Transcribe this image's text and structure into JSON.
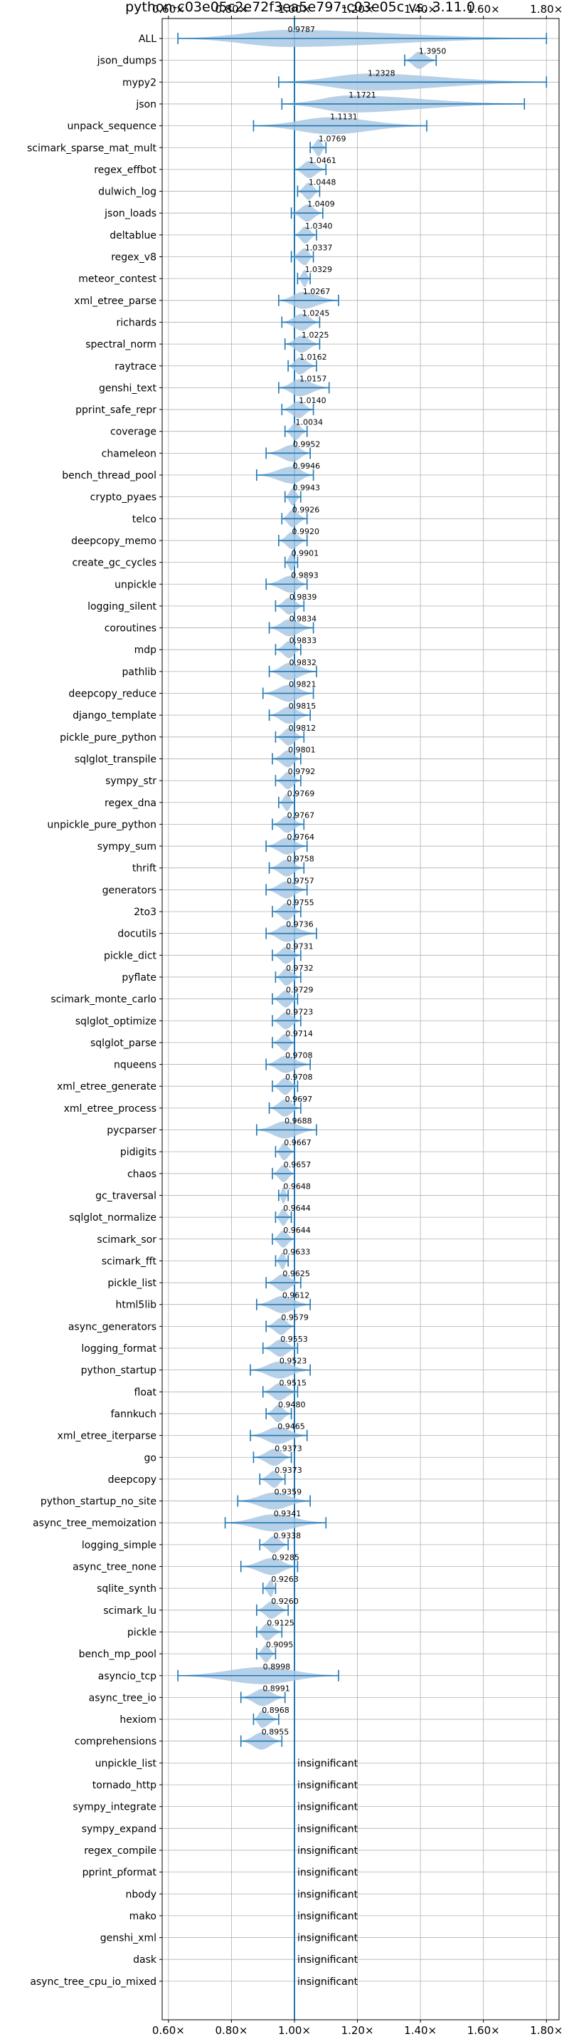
{
  "chart_data": {
    "type": "violin",
    "title": "python-c03e05c2e72f3ea5e797-c03e05c vs. 3.11.0",
    "xlabel": "",
    "ylabel": "",
    "xlim": [
      0.58,
      1.84
    ],
    "x_ticks": [
      0.6,
      0.8,
      1.0,
      1.2,
      1.4,
      1.6,
      1.8
    ],
    "x_tick_format": "{v}×",
    "grid": true,
    "reference_line": 1.0,
    "colors": {
      "body": "#a9c8e4",
      "line": "#1f77b4",
      "grid": "#b0b0b0"
    },
    "insignificant_label": "insignificant",
    "benchmarks": [
      {
        "name": "ALL",
        "median": 0.9787,
        "min": 0.63,
        "max": 1.8,
        "label": "0.9787"
      },
      {
        "name": "json_dumps",
        "median": 1.395,
        "min": 1.35,
        "max": 1.45,
        "label": "1.3950"
      },
      {
        "name": "mypy2",
        "median": 1.2328,
        "min": 0.95,
        "max": 1.8,
        "label": "1.2328"
      },
      {
        "name": "json",
        "median": 1.1721,
        "min": 0.96,
        "max": 1.73,
        "label": "1.1721"
      },
      {
        "name": "unpack_sequence",
        "median": 1.1131,
        "min": 0.87,
        "max": 1.42,
        "label": "1.1131"
      },
      {
        "name": "scimark_sparse_mat_mult",
        "median": 1.0769,
        "min": 1.05,
        "max": 1.1,
        "label": "1.0769"
      },
      {
        "name": "regex_effbot",
        "median": 1.0461,
        "min": 1.0,
        "max": 1.1,
        "label": "1.0461"
      },
      {
        "name": "dulwich_log",
        "median": 1.0448,
        "min": 1.01,
        "max": 1.08,
        "label": "1.0448"
      },
      {
        "name": "json_loads",
        "median": 1.0409,
        "min": 0.99,
        "max": 1.09,
        "label": "1.0409"
      },
      {
        "name": "deltablue",
        "median": 1.034,
        "min": 1.0,
        "max": 1.07,
        "label": "1.0340"
      },
      {
        "name": "regex_v8",
        "median": 1.0337,
        "min": 0.99,
        "max": 1.06,
        "label": "1.0337"
      },
      {
        "name": "meteor_contest",
        "median": 1.0329,
        "min": 1.01,
        "max": 1.05,
        "label": "1.0329"
      },
      {
        "name": "xml_etree_parse",
        "median": 1.0267,
        "min": 0.95,
        "max": 1.14,
        "label": "1.0267"
      },
      {
        "name": "richards",
        "median": 1.0245,
        "min": 0.96,
        "max": 1.08,
        "label": "1.0245"
      },
      {
        "name": "spectral_norm",
        "median": 1.0225,
        "min": 0.97,
        "max": 1.08,
        "label": "1.0225"
      },
      {
        "name": "raytrace",
        "median": 1.0162,
        "min": 0.98,
        "max": 1.07,
        "label": "1.0162"
      },
      {
        "name": "genshi_text",
        "median": 1.0157,
        "min": 0.95,
        "max": 1.11,
        "label": "1.0157"
      },
      {
        "name": "pprint_safe_repr",
        "median": 1.014,
        "min": 0.96,
        "max": 1.06,
        "label": "1.0140"
      },
      {
        "name": "coverage",
        "median": 1.0034,
        "min": 0.97,
        "max": 1.04,
        "label": "1.0034"
      },
      {
        "name": "chameleon",
        "median": 0.9952,
        "min": 0.91,
        "max": 1.05,
        "label": "0.9952"
      },
      {
        "name": "bench_thread_pool",
        "median": 0.9946,
        "min": 0.88,
        "max": 1.06,
        "label": "0.9946"
      },
      {
        "name": "crypto_pyaes",
        "median": 0.9943,
        "min": 0.97,
        "max": 1.02,
        "label": "0.9943"
      },
      {
        "name": "telco",
        "median": 0.9926,
        "min": 0.96,
        "max": 1.04,
        "label": "0.9926"
      },
      {
        "name": "deepcopy_memo",
        "median": 0.992,
        "min": 0.95,
        "max": 1.04,
        "label": "0.9920"
      },
      {
        "name": "create_gc_cycles",
        "median": 0.9901,
        "min": 0.97,
        "max": 1.01,
        "label": "0.9901"
      },
      {
        "name": "unpickle",
        "median": 0.9893,
        "min": 0.91,
        "max": 1.04,
        "label": "0.9893"
      },
      {
        "name": "logging_silent",
        "median": 0.9839,
        "min": 0.94,
        "max": 1.03,
        "label": "0.9839"
      },
      {
        "name": "coroutines",
        "median": 0.9834,
        "min": 0.92,
        "max": 1.06,
        "label": "0.9834"
      },
      {
        "name": "mdp",
        "median": 0.9833,
        "min": 0.94,
        "max": 1.02,
        "label": "0.9833"
      },
      {
        "name": "pathlib",
        "median": 0.9832,
        "min": 0.92,
        "max": 1.07,
        "label": "0.9832"
      },
      {
        "name": "deepcopy_reduce",
        "median": 0.9821,
        "min": 0.9,
        "max": 1.06,
        "label": "0.9821"
      },
      {
        "name": "django_template",
        "median": 0.9815,
        "min": 0.92,
        "max": 1.05,
        "label": "0.9815"
      },
      {
        "name": "pickle_pure_python",
        "median": 0.9812,
        "min": 0.94,
        "max": 1.03,
        "label": "0.9812"
      },
      {
        "name": "sqlglot_transpile",
        "median": 0.9801,
        "min": 0.93,
        "max": 1.02,
        "label": "0.9801"
      },
      {
        "name": "sympy_str",
        "median": 0.9792,
        "min": 0.94,
        "max": 1.02,
        "label": "0.9792"
      },
      {
        "name": "regex_dna",
        "median": 0.9769,
        "min": 0.95,
        "max": 1.0,
        "label": "0.9769"
      },
      {
        "name": "unpickle_pure_python",
        "median": 0.9767,
        "min": 0.93,
        "max": 1.03,
        "label": "0.9767"
      },
      {
        "name": "sympy_sum",
        "median": 0.9764,
        "min": 0.91,
        "max": 1.04,
        "label": "0.9764"
      },
      {
        "name": "thrift",
        "median": 0.9758,
        "min": 0.92,
        "max": 1.03,
        "label": "0.9758"
      },
      {
        "name": "generators",
        "median": 0.9757,
        "min": 0.91,
        "max": 1.04,
        "label": "0.9757"
      },
      {
        "name": "2to3",
        "median": 0.9755,
        "min": 0.93,
        "max": 1.02,
        "label": "0.9755"
      },
      {
        "name": "docutils",
        "median": 0.9736,
        "min": 0.91,
        "max": 1.07,
        "label": "0.9736"
      },
      {
        "name": "pickle_dict",
        "median": 0.9731,
        "min": 0.93,
        "max": 1.02,
        "label": "0.9731"
      },
      {
        "name": "pyflate",
        "median": 0.9732,
        "min": 0.94,
        "max": 1.02,
        "label": "0.9732"
      },
      {
        "name": "scimark_monte_carlo",
        "median": 0.9729,
        "min": 0.93,
        "max": 1.01,
        "label": "0.9729"
      },
      {
        "name": "sqlglot_optimize",
        "median": 0.9723,
        "min": 0.93,
        "max": 1.02,
        "label": "0.9723"
      },
      {
        "name": "sqlglot_parse",
        "median": 0.9714,
        "min": 0.93,
        "max": 1.0,
        "label": "0.9714"
      },
      {
        "name": "nqueens",
        "median": 0.9708,
        "min": 0.91,
        "max": 1.05,
        "label": "0.9708"
      },
      {
        "name": "xml_etree_generate",
        "median": 0.9708,
        "min": 0.93,
        "max": 1.01,
        "label": "0.9708"
      },
      {
        "name": "xml_etree_process",
        "median": 0.9697,
        "min": 0.92,
        "max": 1.02,
        "label": "0.9697"
      },
      {
        "name": "pycparser",
        "median": 0.9688,
        "min": 0.88,
        "max": 1.07,
        "label": "0.9688"
      },
      {
        "name": "pidigits",
        "median": 0.9667,
        "min": 0.94,
        "max": 1.0,
        "label": "0.9667"
      },
      {
        "name": "chaos",
        "median": 0.9657,
        "min": 0.93,
        "max": 1.0,
        "label": "0.9657"
      },
      {
        "name": "gc_traversal",
        "median": 0.9648,
        "min": 0.95,
        "max": 0.98,
        "label": "0.9648"
      },
      {
        "name": "sqlglot_normalize",
        "median": 0.9644,
        "min": 0.94,
        "max": 0.99,
        "label": "0.9644"
      },
      {
        "name": "scimark_sor",
        "median": 0.9644,
        "min": 0.93,
        "max": 1.0,
        "label": "0.9644"
      },
      {
        "name": "scimark_fft",
        "median": 0.9633,
        "min": 0.94,
        "max": 0.98,
        "label": "0.9633"
      },
      {
        "name": "pickle_list",
        "median": 0.9625,
        "min": 0.91,
        "max": 1.02,
        "label": "0.9625"
      },
      {
        "name": "html5lib",
        "median": 0.9612,
        "min": 0.88,
        "max": 1.05,
        "label": "0.9612"
      },
      {
        "name": "async_generators",
        "median": 0.9579,
        "min": 0.91,
        "max": 1.0,
        "label": "0.9579"
      },
      {
        "name": "logging_format",
        "median": 0.9553,
        "min": 0.9,
        "max": 1.01,
        "label": "0.9553"
      },
      {
        "name": "python_startup",
        "median": 0.9523,
        "min": 0.86,
        "max": 1.05,
        "label": "0.9523"
      },
      {
        "name": "float",
        "median": 0.9515,
        "min": 0.9,
        "max": 1.01,
        "label": "0.9515"
      },
      {
        "name": "fannkuch",
        "median": 0.948,
        "min": 0.91,
        "max": 0.99,
        "label": "0.9480"
      },
      {
        "name": "xml_etree_iterparse",
        "median": 0.9465,
        "min": 0.86,
        "max": 1.04,
        "label": "0.9465"
      },
      {
        "name": "go",
        "median": 0.9373,
        "min": 0.87,
        "max": 0.99,
        "label": "0.9373"
      },
      {
        "name": "deepcopy",
        "median": 0.9373,
        "min": 0.89,
        "max": 0.97,
        "label": "0.9373"
      },
      {
        "name": "python_startup_no_site",
        "median": 0.9359,
        "min": 0.82,
        "max": 1.05,
        "label": "0.9359"
      },
      {
        "name": "async_tree_memoization",
        "median": 0.9341,
        "min": 0.78,
        "max": 1.1,
        "label": "0.9341"
      },
      {
        "name": "logging_simple",
        "median": 0.9338,
        "min": 0.89,
        "max": 0.98,
        "label": "0.9338"
      },
      {
        "name": "async_tree_none",
        "median": 0.9285,
        "min": 0.83,
        "max": 1.01,
        "label": "0.9285"
      },
      {
        "name": "sqlite_synth",
        "median": 0.9263,
        "min": 0.9,
        "max": 0.94,
        "label": "0.9263"
      },
      {
        "name": "scimark_lu",
        "median": 0.926,
        "min": 0.88,
        "max": 0.98,
        "label": "0.9260"
      },
      {
        "name": "pickle",
        "median": 0.9125,
        "min": 0.88,
        "max": 0.96,
        "label": "0.9125"
      },
      {
        "name": "bench_mp_pool",
        "median": 0.9095,
        "min": 0.88,
        "max": 0.94,
        "label": "0.9095"
      },
      {
        "name": "asyncio_tcp",
        "median": 0.8998,
        "min": 0.63,
        "max": 1.14,
        "label": "0.8998"
      },
      {
        "name": "async_tree_io",
        "median": 0.8991,
        "min": 0.83,
        "max": 0.97,
        "label": "0.8991"
      },
      {
        "name": "hexiom",
        "median": 0.8968,
        "min": 0.87,
        "max": 0.95,
        "label": "0.8968"
      },
      {
        "name": "comprehensions",
        "median": 0.8955,
        "min": 0.83,
        "max": 0.96,
        "label": "0.8955"
      },
      {
        "name": "unpickle_list",
        "insignificant": true
      },
      {
        "name": "tornado_http",
        "insignificant": true
      },
      {
        "name": "sympy_integrate",
        "insignificant": true
      },
      {
        "name": "sympy_expand",
        "insignificant": true
      },
      {
        "name": "regex_compile",
        "insignificant": true
      },
      {
        "name": "pprint_pformat",
        "insignificant": true
      },
      {
        "name": "nbody",
        "insignificant": true
      },
      {
        "name": "mako",
        "insignificant": true
      },
      {
        "name": "genshi_xml",
        "insignificant": true
      },
      {
        "name": "dask",
        "insignificant": true
      },
      {
        "name": "async_tree_cpu_io_mixed",
        "insignificant": true
      }
    ]
  }
}
